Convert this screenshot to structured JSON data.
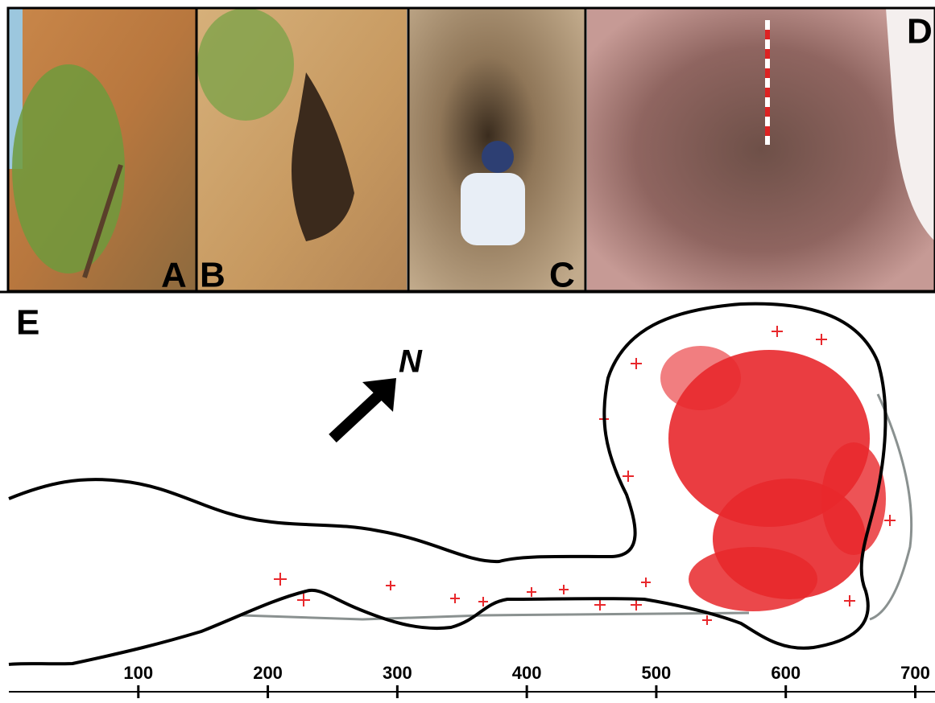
{
  "panels": [
    "A",
    "B",
    "C",
    "D",
    "E"
  ],
  "north": "N",
  "axis": {
    "xlim": [
      0,
      714
    ],
    "xticks": [
      100,
      200,
      300,
      400,
      500,
      600,
      700
    ]
  }
}
